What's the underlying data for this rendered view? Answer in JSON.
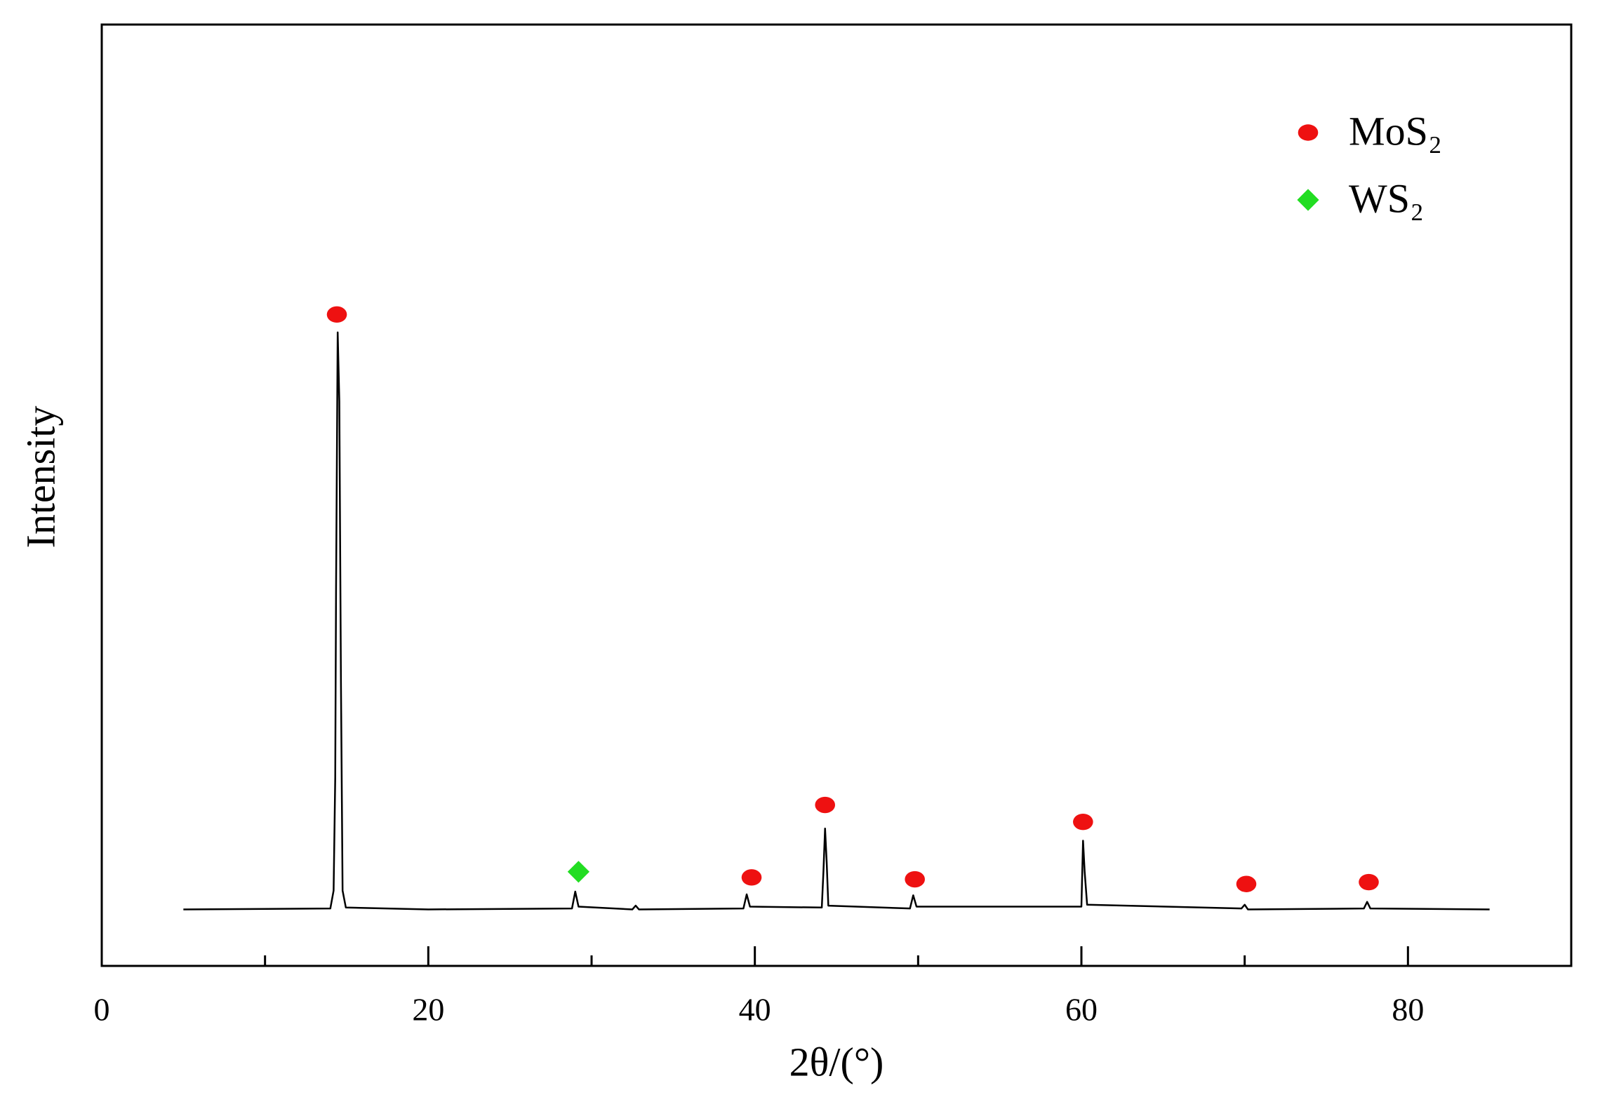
{
  "chart_data": {
    "type": "line",
    "x_label": "2θ/(°)",
    "y_label": "Intensity",
    "x": [
      5,
      14.0,
      14.2,
      14.3,
      14.35,
      14.45,
      14.55,
      14.65,
      14.75,
      14.95,
      20,
      28.8,
      29.0,
      29.2,
      32.5,
      32.7,
      32.9,
      39.3,
      39.5,
      39.7,
      44.1,
      44.2,
      44.3,
      44.4,
      44.5,
      49.5,
      49.7,
      49.9,
      60.0,
      60.1,
      60.2,
      60.35,
      69.8,
      70.0,
      70.2,
      77.3,
      77.5,
      77.7,
      85
    ],
    "values": [
      6,
      6.1,
      8,
      20,
      40,
      67.3,
      60,
      30,
      8,
      6.2,
      6,
      6.1,
      7.9,
      6.3,
      6,
      6.4,
      6,
      6.1,
      7.6,
      6.3,
      6.2,
      10,
      14.6,
      11,
      6.4,
      6.1,
      7.5,
      6.3,
      6.3,
      13.3,
      10,
      6.5,
      6.1,
      6.5,
      6,
      6.1,
      6.8,
      6.1,
      6
    ],
    "color": "#000000",
    "markers": [
      {
        "name": "MoS₂",
        "color": "#ee1111",
        "shape": "circle",
        "x": [
          14.4,
          39.8,
          44.3,
          49.8,
          60.1,
          70.1,
          77.6
        ],
        "values": [
          69.2,
          9.4,
          17.1,
          9.2,
          15.3,
          8.7,
          8.9
        ]
      },
      {
        "name": "WS₂",
        "color": "#22dd22",
        "shape": "diamond",
        "x": [
          29.2
        ],
        "values": [
          10.0
        ]
      }
    ],
    "xlim": [
      0,
      90
    ],
    "xticks": [
      0,
      20,
      40,
      60,
      80
    ],
    "xminor_ticks": [
      10,
      30,
      50,
      70
    ],
    "ylim": [
      0,
      100
    ],
    "legend_position": "upper right"
  }
}
